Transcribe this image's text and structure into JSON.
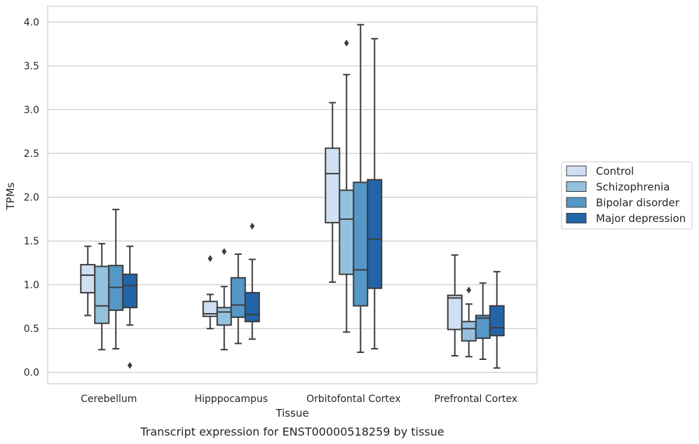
{
  "chart_data": {
    "type": "box",
    "xlabel": "Tissue",
    "ylabel": "TPMs",
    "caption": "Transcript expression for ENST00000518259 by tissue",
    "ylim": [
      -0.13,
      4.18
    ],
    "yticks": [
      "0.0",
      "0.5",
      "1.0",
      "1.5",
      "2.0",
      "2.5",
      "3.0",
      "3.5",
      "4.0"
    ],
    "ytick_values": [
      0.0,
      0.5,
      1.0,
      1.5,
      2.0,
      2.5,
      3.0,
      3.5,
      4.0
    ],
    "grid": "horizontal",
    "legend_position": "right",
    "categories": [
      "Cerebellum",
      "Hipppocampus",
      "Orbitofontal Cortex",
      "Prefrontal Cortex"
    ],
    "series": [
      {
        "name": "Control",
        "color": "#cfe0f2",
        "boxes": [
          {
            "low": 0.65,
            "q1": 0.91,
            "median": 1.11,
            "q3": 1.23,
            "high": 1.44,
            "outliers": []
          },
          {
            "low": 0.5,
            "q1": 0.64,
            "median": 0.67,
            "q3": 0.81,
            "high": 0.89,
            "outliers": [
              1.3
            ]
          },
          {
            "low": 1.03,
            "q1": 1.71,
            "median": 2.27,
            "q3": 2.56,
            "high": 3.08,
            "outliers": []
          },
          {
            "low": 0.19,
            "q1": 0.49,
            "median": 0.85,
            "q3": 0.88,
            "high": 1.34,
            "outliers": []
          }
        ]
      },
      {
        "name": "Schizophrenia",
        "color": "#94c2de",
        "boxes": [
          {
            "low": 0.26,
            "q1": 0.56,
            "median": 0.76,
            "q3": 1.21,
            "high": 1.47,
            "outliers": []
          },
          {
            "low": 0.26,
            "q1": 0.54,
            "median": 0.69,
            "q3": 0.74,
            "high": 0.98,
            "outliers": [
              1.38
            ]
          },
          {
            "low": 0.46,
            "q1": 1.12,
            "median": 1.75,
            "q3": 2.08,
            "high": 3.4,
            "outliers": [
              3.76
            ]
          },
          {
            "low": 0.18,
            "q1": 0.36,
            "median": 0.5,
            "q3": 0.58,
            "high": 0.78,
            "outliers": [
              0.94
            ]
          }
        ]
      },
      {
        "name": "Bipolar disorder",
        "color": "#5597c7",
        "boxes": [
          {
            "low": 0.27,
            "q1": 0.71,
            "median": 0.97,
            "q3": 1.22,
            "high": 1.86,
            "outliers": []
          },
          {
            "low": 0.33,
            "q1": 0.63,
            "median": 0.77,
            "q3": 1.08,
            "high": 1.35,
            "outliers": []
          },
          {
            "low": 0.23,
            "q1": 0.76,
            "median": 1.17,
            "q3": 2.17,
            "high": 3.97,
            "outliers": []
          },
          {
            "low": 0.15,
            "q1": 0.39,
            "median": 0.62,
            "q3": 0.65,
            "high": 1.02,
            "outliers": []
          }
        ]
      },
      {
        "name": "Major depression",
        "color": "#2264a8",
        "boxes": [
          {
            "low": 0.54,
            "q1": 0.74,
            "median": 0.99,
            "q3": 1.12,
            "high": 1.44,
            "outliers": [
              0.08
            ]
          },
          {
            "low": 0.38,
            "q1": 0.58,
            "median": 0.66,
            "q3": 0.91,
            "high": 1.29,
            "outliers": [
              1.67
            ]
          },
          {
            "low": 0.27,
            "q1": 0.96,
            "median": 1.52,
            "q3": 2.2,
            "high": 3.81,
            "outliers": []
          },
          {
            "low": 0.05,
            "q1": 0.42,
            "median": 0.51,
            "q3": 0.76,
            "high": 1.15,
            "outliers": []
          }
        ]
      }
    ]
  }
}
